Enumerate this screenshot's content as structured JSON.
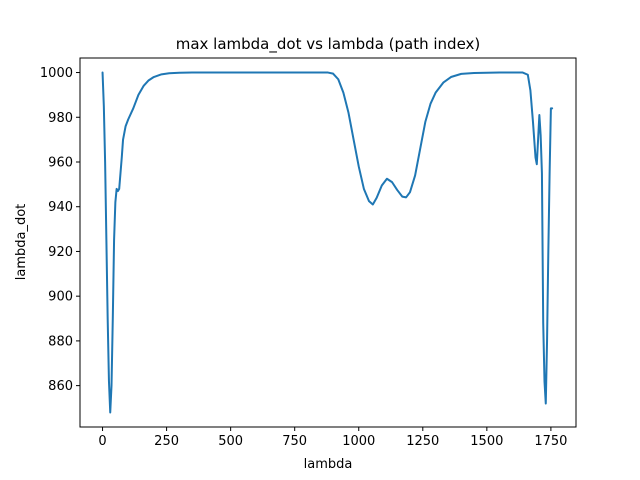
{
  "chart_data": {
    "type": "line",
    "title": "max lambda_dot vs lambda (path index)",
    "xlabel": "lambda",
    "ylabel": "lambda_dot",
    "xlim": [
      -88,
      1848
    ],
    "ylim": [
      841.5,
      1006.5
    ],
    "xticks": [
      0,
      250,
      500,
      750,
      1000,
      1250,
      1500,
      1750
    ],
    "yticks": [
      860,
      880,
      900,
      920,
      940,
      960,
      980,
      1000
    ],
    "grid": false,
    "legend": "none",
    "colors": {
      "line": "#1f77b4"
    },
    "series": [
      {
        "x": [
          0,
          5,
          10,
          15,
          20,
          25,
          30,
          35,
          40,
          45,
          50,
          55,
          60,
          65,
          70,
          75,
          80,
          90,
          100,
          120,
          140,
          160,
          180,
          200,
          230,
          260,
          300,
          350,
          400,
          500,
          600,
          700,
          800,
          850,
          880,
          900,
          920,
          940,
          960,
          980,
          1000,
          1020,
          1040,
          1055,
          1070,
          1090,
          1110,
          1130,
          1150,
          1170,
          1185,
          1200,
          1220,
          1240,
          1260,
          1280,
          1300,
          1330,
          1360,
          1400,
          1450,
          1500,
          1550,
          1600,
          1640,
          1660,
          1670,
          1680,
          1690,
          1695,
          1700,
          1705,
          1710,
          1715,
          1720,
          1725,
          1730,
          1735,
          1740,
          1745,
          1750,
          1755
        ],
        "y": [
          1000,
          985,
          960,
          925,
          890,
          862,
          848,
          860,
          890,
          925,
          942,
          948,
          947,
          948,
          955,
          962,
          970,
          976,
          979,
          984,
          990,
          994,
          996.5,
          998,
          999.2,
          999.7,
          999.9,
          1000,
          1000,
          1000,
          1000,
          1000,
          1000,
          1000,
          1000,
          999.5,
          997,
          991,
          982,
          970,
          958,
          948,
          942.5,
          941,
          944,
          949.5,
          952.5,
          951,
          947.5,
          944.5,
          944.2,
          946.5,
          954,
          966,
          978,
          986,
          991,
          995.5,
          998,
          999.4,
          999.8,
          999.9,
          1000,
          1000,
          1000,
          999,
          992,
          978,
          962,
          959,
          970,
          981,
          972,
          955,
          888,
          862,
          852,
          880,
          920,
          955,
          984,
          984
        ]
      }
    ]
  }
}
